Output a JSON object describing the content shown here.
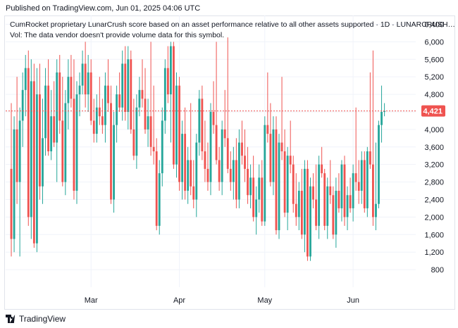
{
  "header": {
    "published": "Published on TradingView.com, Jun 01, 2025 04:06 UTC"
  },
  "legend": {
    "line1": "CumRocket proprietary LunarCrush score based on an asset performance relative to all other assets supported · 1D · LUNARCRUSH…",
    "line2": "Vol: The data vendor doesn't provide volume data for this symbol."
  },
  "footer": {
    "brand": "TradingView"
  },
  "colors": {
    "up": "#26a69a",
    "down": "#ef5350",
    "last_price_bg": "#ef5350",
    "grid": "#f0f3fa"
  },
  "chart_data": {
    "type": "candlestick",
    "ylim": [
      400,
      6600
    ],
    "y_ticks": [
      800,
      1200,
      1600,
      2000,
      2400,
      2800,
      3200,
      3600,
      4000,
      4400,
      4800,
      5200,
      5600,
      6000,
      6400
    ],
    "y_tick_labels": [
      "800",
      "1,200",
      "1,600",
      "2,000",
      "2,400",
      "2,800",
      "3,200",
      "3,600",
      "4,000",
      "4,400",
      "4,800",
      "5,200",
      "5,600",
      "6,000",
      "6,400"
    ],
    "x_labels": [
      {
        "label": "Mar",
        "index": 28
      },
      {
        "label": "Apr",
        "index": 59
      },
      {
        "label": "May",
        "index": 89
      },
      {
        "label": "Jun",
        "index": 120
      }
    ],
    "last_price": 4421,
    "last_price_label": "4,421",
    "candles": [
      [
        3100,
        4600,
        1100,
        1500
      ],
      [
        1500,
        4300,
        1200,
        4000
      ],
      [
        4000,
        5200,
        2300,
        2800
      ],
      [
        2800,
        4500,
        1100,
        4200
      ],
      [
        4200,
        5300,
        3600,
        4900
      ],
      [
        4900,
        5700,
        4300,
        5400
      ],
      [
        5400,
        5800,
        1800,
        2000
      ],
      [
        2000,
        5600,
        1500,
        5100
      ],
      [
        5100,
        5500,
        1300,
        1400
      ],
      [
        1400,
        5400,
        1200,
        4800
      ],
      [
        4800,
        5500,
        2400,
        2700
      ],
      [
        2700,
        4700,
        2300,
        3800
      ],
      [
        3800,
        5400,
        3400,
        5000
      ],
      [
        5000,
        5600,
        3400,
        3500
      ],
      [
        3500,
        4900,
        3300,
        4300
      ],
      [
        4300,
        5100,
        3600,
        3700
      ],
      [
        3700,
        5600,
        2800,
        5300
      ],
      [
        5300,
        5700,
        3900,
        4200
      ],
      [
        4200,
        5200,
        2700,
        2800
      ],
      [
        2800,
        4900,
        2500,
        4600
      ],
      [
        4600,
        5600,
        4000,
        5200
      ],
      [
        5200,
        5700,
        4500,
        4700
      ],
      [
        4700,
        5600,
        2400,
        2600
      ],
      [
        2600,
        5100,
        2300,
        4800
      ],
      [
        4800,
        5300,
        4300,
        5000
      ],
      [
        5000,
        5800,
        4800,
        5500
      ],
      [
        5500,
        6000,
        4500,
        4800
      ],
      [
        4800,
        5700,
        4400,
        5300
      ],
      [
        5300,
        5600,
        4100,
        4200
      ],
      [
        4200,
        4700,
        3700,
        3900
      ],
      [
        3900,
        4800,
        3700,
        4500
      ],
      [
        4500,
        5200,
        4100,
        4300
      ],
      [
        4300,
        4700,
        3900,
        4100
      ],
      [
        4100,
        5300,
        3700,
        5000
      ],
      [
        5000,
        5600,
        4400,
        4600
      ],
      [
        4600,
        5000,
        2300,
        2400
      ],
      [
        2400,
        4400,
        2100,
        4100
      ],
      [
        4100,
        5000,
        3700,
        4800
      ],
      [
        4800,
        5300,
        4400,
        4500
      ],
      [
        4500,
        5800,
        4200,
        5500
      ],
      [
        5500,
        5900,
        4200,
        4400
      ],
      [
        4400,
        5900,
        4000,
        5600
      ],
      [
        5600,
        5800,
        3900,
        4000
      ],
      [
        4000,
        4700,
        3300,
        3400
      ],
      [
        3400,
        4800,
        3100,
        4500
      ],
      [
        4500,
        5200,
        4300,
        4900
      ],
      [
        4900,
        5600,
        4500,
        4700
      ],
      [
        4700,
        5400,
        3900,
        4000
      ],
      [
        4000,
        4700,
        3600,
        4300
      ],
      [
        4300,
        6000,
        3400,
        3600
      ],
      [
        3600,
        5000,
        3200,
        3500
      ],
      [
        3500,
        3800,
        1700,
        1800
      ],
      [
        1800,
        3300,
        1600,
        3000
      ],
      [
        3000,
        4500,
        2700,
        4200
      ],
      [
        4200,
        5600,
        3900,
        5400
      ],
      [
        5400,
        5900,
        4600,
        4800
      ],
      [
        4800,
        6000,
        3700,
        5900
      ],
      [
        5900,
        6000,
        3100,
        3200
      ],
      [
        3200,
        5300,
        2900,
        5000
      ],
      [
        5000,
        5200,
        2600,
        2800
      ],
      [
        2800,
        4200,
        2400,
        3900
      ],
      [
        3900,
        4500,
        2400,
        2600
      ],
      [
        2600,
        3600,
        2300,
        3300
      ],
      [
        3300,
        4600,
        2500,
        2700
      ],
      [
        2700,
        3300,
        2200,
        2400
      ],
      [
        2400,
        3900,
        2000,
        3700
      ],
      [
        3700,
        4900,
        3400,
        4700
      ],
      [
        4700,
        5000,
        3300,
        3500
      ],
      [
        3500,
        4200,
        2800,
        3100
      ],
      [
        3100,
        3700,
        2600,
        2800
      ],
      [
        2800,
        4600,
        2500,
        4400
      ],
      [
        4400,
        5100,
        3900,
        4100
      ],
      [
        4100,
        6000,
        3200,
        3300
      ],
      [
        3300,
        3600,
        2600,
        2800
      ],
      [
        2800,
        4200,
        2500,
        4000
      ],
      [
        4000,
        4900,
        3600,
        3800
      ],
      [
        3800,
        6100,
        3000,
        3100
      ],
      [
        3100,
        3500,
        2600,
        2800
      ],
      [
        2800,
        3600,
        2400,
        3300
      ],
      [
        3300,
        3800,
        2200,
        2400
      ],
      [
        2400,
        4000,
        2200,
        3700
      ],
      [
        3700,
        4200,
        3200,
        3400
      ],
      [
        3400,
        4000,
        2800,
        3100
      ],
      [
        3100,
        3600,
        2300,
        2500
      ],
      [
        2500,
        3200,
        2200,
        2900
      ],
      [
        2900,
        3400,
        1900,
        2000
      ],
      [
        2000,
        2700,
        1600,
        2400
      ],
      [
        2400,
        3200,
        2100,
        2900
      ],
      [
        2900,
        3300,
        1800,
        1900
      ],
      [
        1900,
        4300,
        1800,
        4100
      ],
      [
        4100,
        5300,
        3700,
        3900
      ],
      [
        3900,
        4600,
        2700,
        2800
      ],
      [
        2800,
        4300,
        2500,
        4000
      ],
      [
        4000,
        4300,
        1600,
        1700
      ],
      [
        1700,
        3900,
        1500,
        3700
      ],
      [
        3700,
        5200,
        3300,
        3500
      ],
      [
        3500,
        4000,
        2000,
        2100
      ],
      [
        2100,
        3600,
        1700,
        3400
      ],
      [
        3400,
        4200,
        3000,
        3200
      ],
      [
        3200,
        3400,
        2100,
        2300
      ],
      [
        2300,
        3000,
        1800,
        2000
      ],
      [
        2000,
        2800,
        1700,
        2600
      ],
      [
        2600,
        3100,
        1500,
        1600
      ],
      [
        1600,
        3300,
        1200,
        3100
      ],
      [
        3100,
        3300,
        1000,
        1100
      ],
      [
        1100,
        2900,
        1000,
        2700
      ],
      [
        2700,
        3000,
        2200,
        2400
      ],
      [
        2400,
        3200,
        1700,
        1800
      ],
      [
        1800,
        3400,
        1500,
        3200
      ],
      [
        3200,
        3600,
        2900,
        3000
      ],
      [
        3000,
        3100,
        1700,
        1800
      ],
      [
        1800,
        2900,
        1500,
        2700
      ],
      [
        2700,
        3300,
        2300,
        2500
      ],
      [
        2500,
        2700,
        1500,
        1600
      ],
      [
        1600,
        2900,
        1300,
        2600
      ],
      [
        2600,
        3000,
        2100,
        2200
      ],
      [
        2200,
        3300,
        1900,
        3200
      ],
      [
        3200,
        3400,
        1800,
        2000
      ],
      [
        2000,
        2700,
        1700,
        2500
      ],
      [
        2500,
        2900,
        2100,
        2200
      ],
      [
        2200,
        3200,
        1900,
        3000
      ],
      [
        3000,
        4500,
        2600,
        2800
      ],
      [
        2800,
        3300,
        2300,
        2600
      ],
      [
        2600,
        3500,
        2300,
        3300
      ],
      [
        3300,
        3500,
        2100,
        2200
      ],
      [
        2200,
        3600,
        2000,
        3500
      ],
      [
        3500,
        5300,
        3100,
        3200
      ],
      [
        3200,
        5800,
        1800,
        2000
      ],
      [
        2000,
        3700,
        1700,
        2300
      ],
      [
        2300,
        4200,
        2200,
        4100
      ],
      [
        4100,
        5000,
        3700,
        4400
      ],
      [
        4400,
        4600,
        4300,
        4421
      ]
    ]
  }
}
